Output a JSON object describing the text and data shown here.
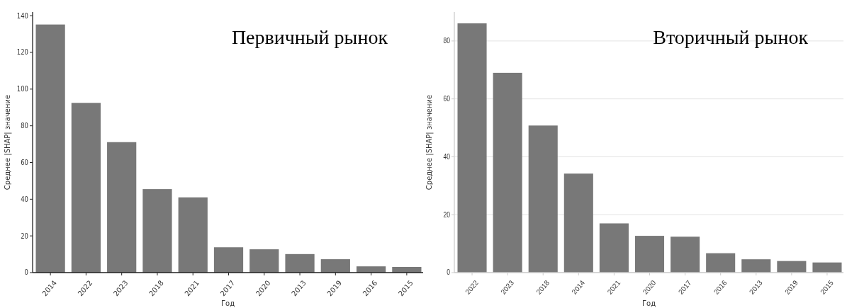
{
  "chart_data": [
    {
      "type": "bar",
      "title": "Первичный рынок",
      "xlabel": "Год",
      "ylabel": "Среднее |SHAP| значение",
      "categories": [
        "2014",
        "2022",
        "2023",
        "2018",
        "2021",
        "2017",
        "2020",
        "2013",
        "2019",
        "2016",
        "2015"
      ],
      "values": [
        135.2,
        92.5,
        71.1,
        45.5,
        41.0,
        13.8,
        12.7,
        10.1,
        7.3,
        3.4,
        3.1
      ],
      "color": "#787878",
      "ylim": [
        0,
        142
      ],
      "yticks": [
        0,
        20,
        40,
        60,
        80,
        100,
        120,
        140
      ],
      "grid": false
    },
    {
      "type": "bar",
      "title": "Вторичный рынок",
      "xlabel": "Год",
      "ylabel": "Среднее |SHAP| значение",
      "categories": [
        "2022",
        "2023",
        "2018",
        "2014",
        "2021",
        "2020",
        "2017",
        "2016",
        "2013",
        "2019",
        "2015"
      ],
      "values": [
        86.1,
        69.0,
        50.8,
        34.2,
        17.0,
        12.7,
        12.4,
        6.7,
        4.6,
        4.0,
        3.5
      ],
      "color": "#787878",
      "ylim": [
        0,
        90
      ],
      "yticks": [
        0,
        20,
        40,
        60,
        80
      ],
      "grid": "y"
    }
  ]
}
